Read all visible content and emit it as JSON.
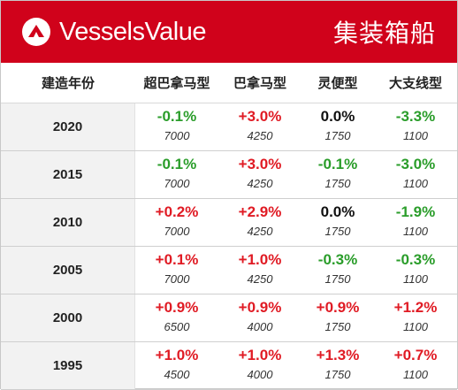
{
  "banner": {
    "brand": "VesselsValue",
    "segment": "集装箱船",
    "logo_icon": "vesselsvalue-logo-icon",
    "accent": "#d0021b"
  },
  "columns": {
    "year": "建造年份",
    "a": "超巴拿马型",
    "b": "巴拿马型",
    "c": "灵便型",
    "d": "大支线型"
  },
  "colors": {
    "positive": "#e01b24",
    "negative": "#2a9d2a",
    "neutral": "#111111"
  },
  "rows": [
    {
      "year": "2020",
      "cells": [
        {
          "pct": "-0.1%",
          "sign": "neg",
          "dwt": "7000"
        },
        {
          "pct": "+3.0%",
          "sign": "pos",
          "dwt": "4250"
        },
        {
          "pct": "0.0%",
          "sign": "zero",
          "dwt": "1750"
        },
        {
          "pct": "-3.3%",
          "sign": "neg",
          "dwt": "1100"
        }
      ]
    },
    {
      "year": "2015",
      "cells": [
        {
          "pct": "-0.1%",
          "sign": "neg",
          "dwt": "7000"
        },
        {
          "pct": "+3.0%",
          "sign": "pos",
          "dwt": "4250"
        },
        {
          "pct": "-0.1%",
          "sign": "neg",
          "dwt": "1750"
        },
        {
          "pct": "-3.0%",
          "sign": "neg",
          "dwt": "1100"
        }
      ]
    },
    {
      "year": "2010",
      "cells": [
        {
          "pct": "+0.2%",
          "sign": "pos",
          "dwt": "7000"
        },
        {
          "pct": "+2.9%",
          "sign": "pos",
          "dwt": "4250"
        },
        {
          "pct": "0.0%",
          "sign": "zero",
          "dwt": "1750"
        },
        {
          "pct": "-1.9%",
          "sign": "neg",
          "dwt": "1100"
        }
      ]
    },
    {
      "year": "2005",
      "cells": [
        {
          "pct": "+0.1%",
          "sign": "pos",
          "dwt": "7000"
        },
        {
          "pct": "+1.0%",
          "sign": "pos",
          "dwt": "4250"
        },
        {
          "pct": "-0.3%",
          "sign": "neg",
          "dwt": "1750"
        },
        {
          "pct": "-0.3%",
          "sign": "neg",
          "dwt": "1100"
        }
      ]
    },
    {
      "year": "2000",
      "cells": [
        {
          "pct": "+0.9%",
          "sign": "pos",
          "dwt": "6500"
        },
        {
          "pct": "+0.9%",
          "sign": "pos",
          "dwt": "4000"
        },
        {
          "pct": "+0.9%",
          "sign": "pos",
          "dwt": "1750"
        },
        {
          "pct": "+1.2%",
          "sign": "pos",
          "dwt": "1100"
        }
      ]
    },
    {
      "year": "1995",
      "cells": [
        {
          "pct": "+1.0%",
          "sign": "pos",
          "dwt": "4500"
        },
        {
          "pct": "+1.0%",
          "sign": "pos",
          "dwt": "4000"
        },
        {
          "pct": "+1.3%",
          "sign": "pos",
          "dwt": "1750"
        },
        {
          "pct": "+0.7%",
          "sign": "pos",
          "dwt": "1100"
        }
      ]
    }
  ]
}
